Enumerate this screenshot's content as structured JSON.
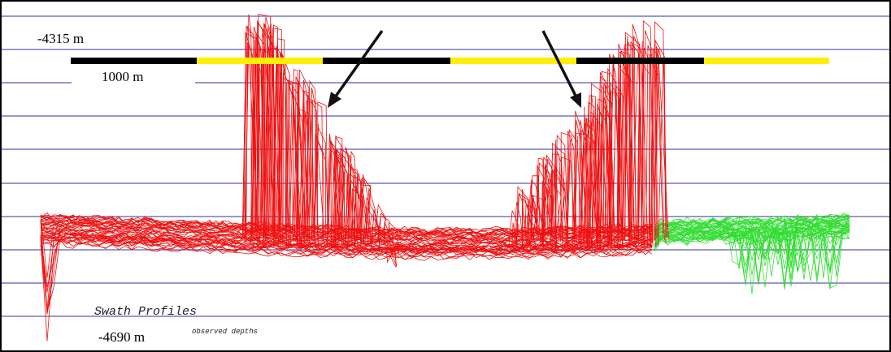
{
  "labels": {
    "top_depth": "-4315 m",
    "scale": "1000 m",
    "bottom_depth": "-4690 m",
    "title": "Swath Profiles",
    "subtitle": "observed depths"
  }
}
